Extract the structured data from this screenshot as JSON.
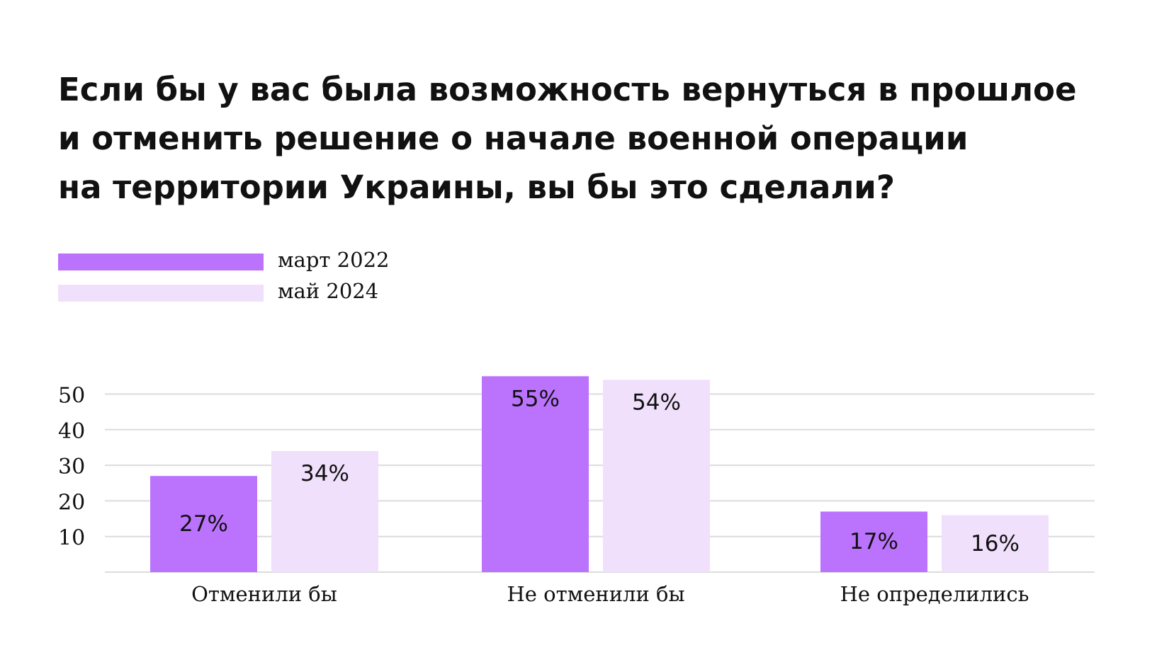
{
  "title_lines": [
    "Если бы у вас была возможность вернуться в прошлое",
    "и отменить решение о начале военной операции",
    "на территории Украины, вы бы это сделали?"
  ],
  "legend": [
    {
      "label": "март 2022",
      "color": "#bb73fe"
    },
    {
      "label": "май 2024",
      "color": "#f0e0fc"
    }
  ],
  "chart_data": {
    "type": "bar",
    "title": "Если бы у вас была возможность вернуться в прошлое и отменить решение о начале военной операции на территории Украины, вы бы это сделали?",
    "categories": [
      "Отменили бы",
      "Не отменили бы",
      "Не определились"
    ],
    "series": [
      {
        "name": "март 2022",
        "values": [
          27,
          55,
          17
        ],
        "labels": [
          "27%",
          "55%",
          "17%"
        ],
        "color": "#bb73fe"
      },
      {
        "name": "май 2024",
        "values": [
          34,
          54,
          16
        ],
        "labels": [
          "34%",
          "54%",
          "16%"
        ],
        "color": "#f0e0fc"
      }
    ],
    "yticks": [
      10,
      20,
      30,
      40,
      50
    ],
    "ylim": [
      0,
      55
    ],
    "xlabel": "",
    "ylabel": "",
    "grid": true,
    "legend_position": "top-left"
  }
}
